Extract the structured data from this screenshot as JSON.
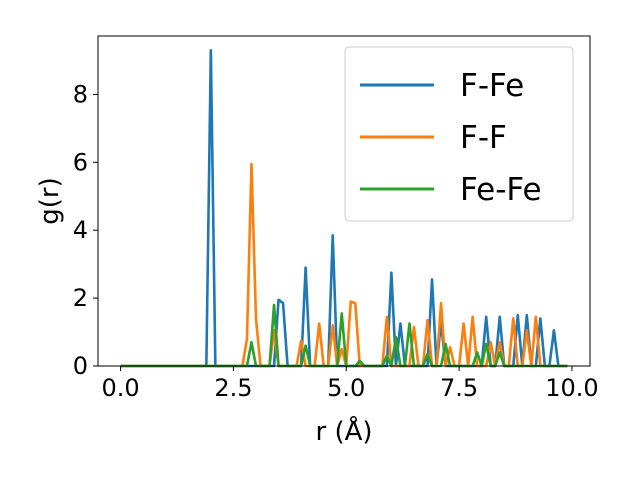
{
  "chart_data": {
    "type": "line",
    "title": "",
    "xlabel": "r (Å)",
    "ylabel": "g(r)",
    "xlim": [
      -0.5,
      10.4
    ],
    "ylim": [
      0,
      9.72
    ],
    "xticks": [
      0.0,
      2.5,
      5.0,
      7.5,
      10.0
    ],
    "xtick_labels": [
      "0.0",
      "2.5",
      "5.0",
      "7.5",
      "10.0"
    ],
    "yticks": [
      0,
      2,
      4,
      6,
      8
    ],
    "ytick_labels": [
      "0",
      "2",
      "4",
      "6",
      "8"
    ],
    "grid": false,
    "legend_position": "top-right",
    "x": [
      0.0,
      0.1,
      0.2,
      0.3,
      0.4,
      0.5,
      0.6,
      0.7,
      0.8,
      0.9,
      1.0,
      1.1,
      1.2,
      1.3,
      1.4,
      1.5,
      1.6,
      1.7,
      1.8,
      1.9,
      2.0,
      2.1,
      2.2,
      2.3,
      2.4,
      2.5,
      2.6,
      2.7,
      2.8,
      2.9,
      3.0,
      3.1,
      3.2,
      3.3,
      3.4,
      3.5,
      3.6,
      3.7,
      3.8,
      3.9,
      4.0,
      4.1,
      4.2,
      4.3,
      4.4,
      4.5,
      4.6,
      4.7,
      4.8,
      4.9,
      5.0,
      5.1,
      5.2,
      5.3,
      5.4,
      5.5,
      5.6,
      5.7,
      5.8,
      5.9,
      6.0,
      6.1,
      6.2,
      6.3,
      6.4,
      6.5,
      6.6,
      6.7,
      6.8,
      6.9,
      7.0,
      7.1,
      7.2,
      7.3,
      7.4,
      7.5,
      7.6,
      7.7,
      7.8,
      7.9,
      8.0,
      8.1,
      8.2,
      8.3,
      8.4,
      8.5,
      8.6,
      8.7,
      8.8,
      8.9,
      9.0,
      9.1,
      9.2,
      9.3,
      9.4,
      9.5,
      9.6,
      9.7,
      9.8,
      9.9
    ],
    "series": [
      {
        "name": "F-Fe",
        "color": "#1f77b4",
        "values": [
          0,
          0,
          0,
          0,
          0,
          0,
          0,
          0,
          0,
          0,
          0,
          0,
          0,
          0,
          0,
          0,
          0,
          0,
          0,
          0,
          9.3,
          0,
          0,
          0,
          0,
          0,
          0,
          0,
          0,
          0,
          0,
          0,
          0,
          0,
          0,
          1.95,
          1.85,
          0,
          0,
          0,
          0,
          2.9,
          0,
          0,
          0,
          0,
          0,
          3.85,
          0,
          0,
          0,
          0,
          0,
          0,
          0,
          0,
          0,
          0,
          0,
          0,
          2.75,
          0,
          1.25,
          0,
          0,
          0,
          0,
          0,
          0,
          2.55,
          0,
          1.3,
          0,
          0,
          0,
          0,
          0,
          0,
          0,
          0,
          0,
          1.45,
          0,
          0,
          1.45,
          0,
          0,
          0,
          1.5,
          0,
          1.5,
          0,
          0,
          1.4,
          0,
          0,
          1.05,
          0,
          0,
          0
        ]
      },
      {
        "name": "F-F",
        "color": "#ff7f0e",
        "values": [
          0,
          0,
          0,
          0,
          0,
          0,
          0,
          0,
          0,
          0,
          0,
          0,
          0,
          0,
          0,
          0,
          0,
          0,
          0,
          0,
          0,
          0,
          0,
          0,
          0,
          0,
          0,
          0,
          0.8,
          5.95,
          1.4,
          0,
          0,
          0,
          1.05,
          0,
          0,
          0,
          0,
          0,
          0.75,
          0,
          0,
          0,
          1.25,
          0,
          0,
          1.2,
          0,
          0.5,
          0,
          1.9,
          1.85,
          0,
          0,
          0,
          0,
          0,
          0,
          1.45,
          0,
          0,
          0,
          0,
          0,
          1.15,
          0,
          0,
          1.35,
          0,
          0,
          1.85,
          0,
          0.55,
          0,
          0,
          1.25,
          0,
          1.45,
          0,
          0,
          0,
          0.7,
          0,
          0.7,
          0,
          0,
          1.4,
          0,
          0,
          1.05,
          0,
          1.45,
          0,
          0,
          0,
          0,
          0,
          0,
          0
        ]
      },
      {
        "name": "Fe-Fe",
        "color": "#2ca02c",
        "values": [
          0,
          0,
          0,
          0,
          0,
          0,
          0,
          0,
          0,
          0,
          0,
          0,
          0,
          0,
          0,
          0,
          0,
          0,
          0,
          0,
          0,
          0,
          0,
          0,
          0,
          0,
          0,
          0,
          0,
          0.7,
          0,
          0,
          0,
          0,
          1.8,
          0,
          0,
          0,
          0,
          0,
          0,
          0.6,
          0,
          0,
          0,
          0,
          0,
          0,
          0,
          1.55,
          0,
          0,
          0,
          0.15,
          0,
          0,
          0,
          0,
          0,
          0.3,
          0,
          0.85,
          0,
          0,
          1.25,
          0,
          0,
          0,
          0.35,
          0,
          0,
          0,
          0.65,
          0,
          0,
          0,
          0,
          0,
          0,
          0.4,
          0,
          0.65,
          0,
          0,
          0.4,
          0,
          0,
          0,
          0,
          0,
          0,
          0,
          0,
          0,
          0,
          0,
          0,
          0,
          0,
          0
        ]
      }
    ]
  }
}
